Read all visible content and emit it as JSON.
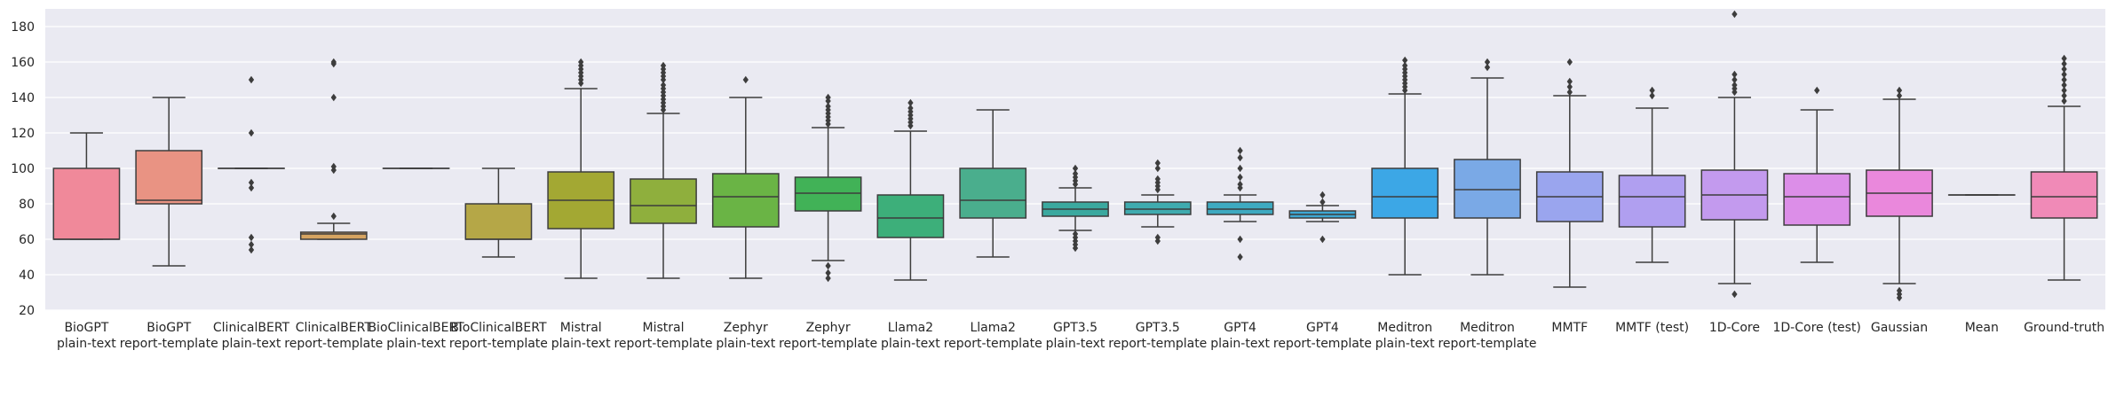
{
  "chart_data": {
    "type": "box",
    "title": "",
    "xlabel": "",
    "ylabel": "",
    "ylim": [
      20,
      190
    ],
    "yticks": [
      20,
      40,
      60,
      80,
      100,
      120,
      140,
      160,
      180
    ],
    "grid": true,
    "background": "#eaeaf2",
    "categories": [
      {
        "lines": [
          "BioGPT",
          "plain-text"
        ],
        "color": "#f0899a",
        "stats": {
          "wl": 60,
          "q1": 60,
          "med": 60,
          "q3": 100,
          "wh": 120
        },
        "outliers": []
      },
      {
        "lines": [
          "BioGPT",
          "report-template"
        ],
        "color": "#e99383",
        "stats": {
          "wl": 45,
          "q1": 80,
          "med": 82,
          "q3": 110,
          "wh": 140
        },
        "outliers": []
      },
      {
        "lines": [
          "ClinicalBERT",
          "plain-text"
        ],
        "color": "#d7a06e",
        "stats": {
          "wl": 100,
          "q1": 100,
          "med": 100,
          "q3": 100,
          "wh": 100
        },
        "outliers": [
          150,
          120,
          92,
          89,
          61,
          57,
          54
        ]
      },
      {
        "lines": [
          "ClinicalBERT",
          "report-template"
        ],
        "color": "#d6a461",
        "stats": {
          "wl": 60,
          "q1": 60,
          "med": 63,
          "q3": 64,
          "wh": 69
        },
        "outliers": [
          160,
          159,
          140,
          101,
          99,
          73
        ]
      },
      {
        "lines": [
          "BioClinicalBERT",
          "plain-text"
        ],
        "color": "#c2a554",
        "stats": {
          "wl": 100,
          "q1": 100,
          "med": 100,
          "q3": 100,
          "wh": 100
        },
        "outliers": []
      },
      {
        "lines": [
          "BioClinicalBERT",
          "report-template"
        ],
        "color": "#b5a747",
        "stats": {
          "wl": 50,
          "q1": 60,
          "med": 60,
          "q3": 80,
          "wh": 100
        },
        "outliers": []
      },
      {
        "lines": [
          "Mistral",
          "plain-text"
        ],
        "color": "#a3a833",
        "stats": {
          "wl": 38,
          "q1": 66,
          "med": 82,
          "q3": 98,
          "wh": 145
        },
        "outliers": [
          148,
          150,
          152,
          154,
          156,
          158,
          160
        ]
      },
      {
        "lines": [
          "Mistral",
          "report-template"
        ],
        "color": "#8faf3d",
        "stats": {
          "wl": 38,
          "q1": 69,
          "med": 79,
          "q3": 94,
          "wh": 131
        },
        "outliers": [
          133,
          135,
          137,
          139,
          141,
          143,
          145,
          147,
          150,
          152,
          154,
          156,
          158
        ]
      },
      {
        "lines": [
          "Zephyr",
          "plain-text"
        ],
        "color": "#6ab445",
        "stats": {
          "wl": 38,
          "q1": 67,
          "med": 84,
          "q3": 97,
          "wh": 140
        },
        "outliers": [
          150
        ]
      },
      {
        "lines": [
          "Zephyr",
          "report-template"
        ],
        "color": "#41b257",
        "stats": {
          "wl": 48,
          "q1": 76,
          "med": 86,
          "q3": 95,
          "wh": 123
        },
        "outliers": [
          125,
          127,
          129,
          131,
          133,
          135,
          138,
          140,
          45,
          41,
          38
        ]
      },
      {
        "lines": [
          "Llama2",
          "plain-text"
        ],
        "color": "#3daf7a",
        "stats": {
          "wl": 37,
          "q1": 61,
          "med": 72,
          "q3": 85,
          "wh": 121
        },
        "outliers": [
          124,
          126,
          128,
          130,
          132,
          134,
          137
        ]
      },
      {
        "lines": [
          "Llama2",
          "report-template"
        ],
        "color": "#4aae8d",
        "stats": {
          "wl": 50,
          "q1": 72,
          "med": 82,
          "q3": 100,
          "wh": 133
        },
        "outliers": []
      },
      {
        "lines": [
          "GPT3.5",
          "plain-text"
        ],
        "color": "#3ba99f",
        "stats": {
          "wl": 65,
          "q1": 73,
          "med": 77,
          "q3": 81,
          "wh": 89
        },
        "outliers": [
          91,
          93,
          95,
          97,
          100,
          63,
          61,
          59,
          57,
          55
        ]
      },
      {
        "lines": [
          "GPT3.5",
          "report-template"
        ],
        "color": "#3fabaf",
        "stats": {
          "wl": 67,
          "q1": 74,
          "med": 77,
          "q3": 81,
          "wh": 85
        },
        "outliers": [
          88,
          90,
          92,
          94,
          100,
          103,
          61,
          59
        ]
      },
      {
        "lines": [
          "GPT4",
          "plain-text"
        ],
        "color": "#3eaac1",
        "stats": {
          "wl": 70,
          "q1": 74,
          "med": 77,
          "q3": 81,
          "wh": 85
        },
        "outliers": [
          89,
          91,
          95,
          100,
          106,
          110,
          60,
          50
        ]
      },
      {
        "lines": [
          "GPT4",
          "report-template"
        ],
        "color": "#3ea8d4",
        "stats": {
          "wl": 70,
          "q1": 72,
          "med": 74,
          "q3": 76,
          "wh": 79
        },
        "outliers": [
          81,
          85,
          60
        ]
      },
      {
        "lines": [
          "Meditron",
          "plain-text"
        ],
        "color": "#3ca7e6",
        "stats": {
          "wl": 40,
          "q1": 72,
          "med": 84,
          "q3": 100,
          "wh": 142
        },
        "outliers": [
          144,
          146,
          148,
          150,
          152,
          154,
          156,
          158,
          161
        ]
      },
      {
        "lines": [
          "Meditron",
          "report-template"
        ],
        "color": "#7aa9e6",
        "stats": {
          "wl": 40,
          "q1": 72,
          "med": 88,
          "q3": 105,
          "wh": 151
        },
        "outliers": [
          157,
          160
        ]
      },
      {
        "lines": [
          "MMTF"
        ],
        "color": "#9aa5ee",
        "stats": {
          "wl": 33,
          "q1": 70,
          "med": 84,
          "q3": 98,
          "wh": 141
        },
        "outliers": [
          143,
          146,
          149,
          160
        ]
      },
      {
        "lines": [
          "MMTF (test)"
        ],
        "color": "#b09ff0",
        "stats": {
          "wl": 47,
          "q1": 67,
          "med": 84,
          "q3": 96,
          "wh": 134
        },
        "outliers": [
          141,
          144
        ]
      },
      {
        "lines": [
          "1D-Core"
        ],
        "color": "#c39aee",
        "stats": {
          "wl": 35,
          "q1": 71,
          "med": 85,
          "q3": 99,
          "wh": 140
        },
        "outliers": [
          143,
          145,
          147,
          150,
          153,
          187,
          29
        ]
      },
      {
        "lines": [
          "1D-Core (test)"
        ],
        "color": "#dc8ee8",
        "stats": {
          "wl": 47,
          "q1": 68,
          "med": 84,
          "q3": 97,
          "wh": 133
        },
        "outliers": [
          144
        ]
      },
      {
        "lines": [
          "Gaussian"
        ],
        "color": "#ea88dc",
        "stats": {
          "wl": 35,
          "q1": 73,
          "med": 86,
          "q3": 99,
          "wh": 139
        },
        "outliers": [
          141,
          144,
          27,
          29,
          31
        ]
      },
      {
        "lines": [
          "Mean"
        ],
        "color": "#ec86c8",
        "stats": {
          "wl": 85,
          "q1": 85,
          "med": 85,
          "q3": 85,
          "wh": 85
        },
        "outliers": []
      },
      {
        "lines": [
          "Ground-truth"
        ],
        "color": "#f08ab7",
        "stats": {
          "wl": 37,
          "q1": 72,
          "med": 84,
          "q3": 98,
          "wh": 135
        },
        "outliers": [
          138,
          141,
          144,
          147,
          150,
          153,
          156,
          159,
          162
        ]
      }
    ]
  }
}
